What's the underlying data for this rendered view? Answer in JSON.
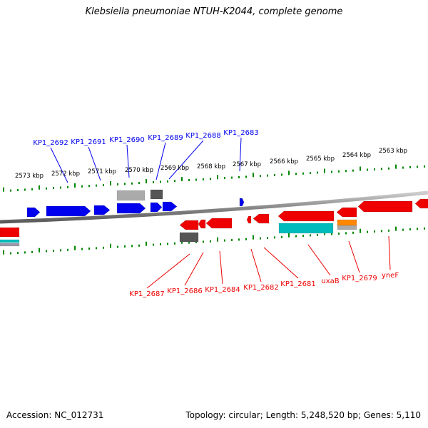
{
  "title": "Klebsiella pneumoniae NTUH-K2044, complete genome",
  "footer": {
    "accession": "Accession: NC_012731",
    "summary": "Topology: circular; Length: 5,248,520 bp; Genes: 5,110"
  },
  "colors": {
    "forward_gene": "#0000ee",
    "reverse_gene": "#ee0000",
    "pseudo_gray": "#aaaaaa",
    "dark_gray": "#555555",
    "cyan": "#00bbbb",
    "orange": "#ff8800",
    "tick_green": "#008800",
    "backbone": "#888888"
  },
  "scale_labels": [
    "2573 kbp",
    "2572 kbp",
    "2571 kbp",
    "2570 kbp",
    "2569 kbp",
    "2568 kbp",
    "2567 kbp",
    "2566 kbp",
    "2565 kbp",
    "2564 kbp",
    "2563 kbp"
  ],
  "top_gene_labels": [
    "KP1_2692",
    "KP1_2691",
    "KP1_2690",
    "KP1_2689",
    "KP1_2688",
    "KP1_2683"
  ],
  "bottom_gene_labels": [
    "KP1_2687",
    "KP1_2686",
    "KP1_2684",
    "KP1_2682",
    "KP1_2681",
    "uxaB",
    "KP1_2679",
    "yneF"
  ]
}
